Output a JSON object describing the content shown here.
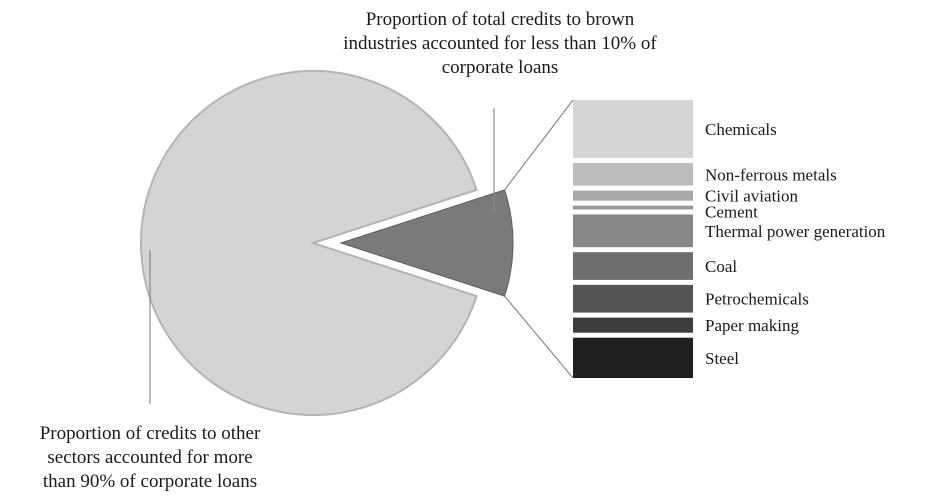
{
  "chart_data": {
    "type": "pie",
    "title": "",
    "slices": [
      {
        "label": "Other sectors",
        "value": 90,
        "color": "#d4d4d6"
      },
      {
        "label": "Brown industries",
        "value": 10,
        "color": "#7a7a7c"
      }
    ],
    "breakdown": {
      "type": "stacked-bar",
      "of": "Brown industries",
      "segments": [
        {
          "label": "Chemicals",
          "value": 2.3,
          "color": "#d4d4d6"
        },
        {
          "label": "Non-ferrous metals",
          "value": 0.9,
          "color": "#bcbcbe"
        },
        {
          "label": "Civil aviation",
          "value": 0.4,
          "color": "#a8a8aa"
        },
        {
          "label": "Cement",
          "value": 0.15,
          "color": "#98989a"
        },
        {
          "label": "Thermal power generation",
          "value": 1.3,
          "color": "#878789"
        },
        {
          "label": "Coal",
          "value": 1.1,
          "color": "#6e6e70"
        },
        {
          "label": "Petrochemicals",
          "value": 1.1,
          "color": "#555557"
        },
        {
          "label": "Paper making",
          "value": 0.6,
          "color": "#3d3d3f"
        },
        {
          "label": "Steel",
          "value": 1.6,
          "color": "#1f1f21"
        }
      ]
    },
    "annotations": {
      "brown": [
        "Proportion of total credits to brown",
        "industries accounted for less than 10% of",
        "corporate loans"
      ],
      "other": [
        "Proportion of credits to other",
        "sectors accounted for more",
        "than 90% of corporate loans"
      ]
    },
    "legend": "none"
  }
}
